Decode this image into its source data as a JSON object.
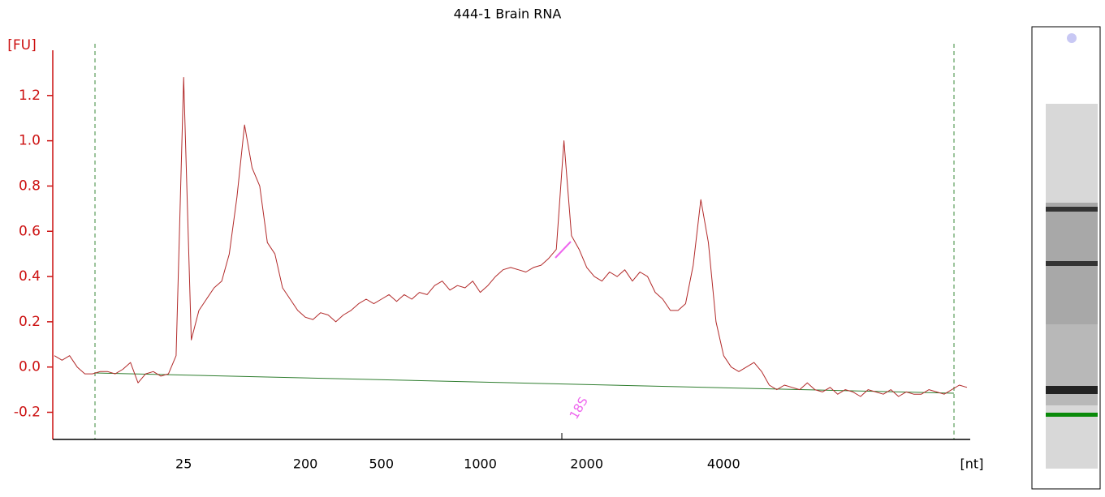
{
  "chart_data": {
    "type": "line",
    "title": "444-1 Brain RNA",
    "y_label": "[FU]",
    "x_label": "[nt]",
    "annotation": "18S",
    "color": "#b22a2a",
    "categories": [
      null,
      null,
      null,
      null,
      null,
      null,
      null,
      null,
      null,
      null,
      null,
      null,
      null,
      null,
      null,
      null,
      null,
      "25",
      null,
      null,
      null,
      null,
      null,
      null,
      null,
      null,
      null,
      null,
      null,
      null,
      null,
      null,
      null,
      "200",
      null,
      null,
      null,
      null,
      null,
      null,
      null,
      null,
      null,
      "500",
      null,
      null,
      null,
      null,
      null,
      null,
      null,
      null,
      null,
      null,
      null,
      null,
      "1000",
      null,
      null,
      null,
      null,
      null,
      null,
      null,
      null,
      null,
      null,
      null,
      null,
      null,
      "2000",
      null,
      null,
      null,
      null,
      null,
      null,
      null,
      null,
      null,
      null,
      null,
      null,
      null,
      null,
      null,
      null,
      null,
      "4000",
      null,
      null,
      null,
      null,
      null,
      null,
      null,
      null,
      null,
      null,
      null,
      null,
      null,
      null,
      null,
      null,
      null,
      null,
      null,
      null,
      null,
      null,
      null,
      null,
      null,
      null,
      null,
      null,
      null,
      null,
      null,
      null
    ],
    "values": [
      0.05,
      0.03,
      0.05,
      0.0,
      -0.03,
      -0.03,
      -0.02,
      -0.02,
      -0.03,
      -0.01,
      0.02,
      -0.07,
      -0.03,
      -0.02,
      -0.04,
      -0.03,
      0.05,
      1.28,
      0.12,
      0.25,
      0.3,
      0.35,
      0.38,
      0.5,
      0.75,
      1.07,
      0.88,
      0.8,
      0.55,
      0.5,
      0.35,
      0.3,
      0.25,
      0.22,
      0.21,
      0.24,
      0.23,
      0.2,
      0.23,
      0.25,
      0.28,
      0.3,
      0.28,
      0.3,
      0.32,
      0.29,
      0.32,
      0.3,
      0.33,
      0.32,
      0.36,
      0.38,
      0.34,
      0.36,
      0.35,
      0.38,
      0.33,
      0.36,
      0.4,
      0.43,
      0.44,
      0.43,
      0.42,
      0.44,
      0.45,
      0.48,
      0.52,
      1.0,
      0.58,
      0.52,
      0.44,
      0.4,
      0.38,
      0.42,
      0.4,
      0.43,
      0.38,
      0.42,
      0.4,
      0.33,
      0.3,
      0.25,
      0.25,
      0.28,
      0.45,
      0.74,
      0.55,
      0.2,
      0.05,
      0.0,
      -0.02,
      0.0,
      0.02,
      -0.02,
      -0.08,
      -0.1,
      -0.08,
      -0.09,
      -0.1,
      -0.07,
      -0.1,
      -0.11,
      -0.09,
      -0.12,
      -0.1,
      -0.11,
      -0.13,
      -0.1,
      -0.11,
      -0.12,
      -0.1,
      -0.13,
      -0.11,
      -0.12,
      -0.12,
      -0.1,
      -0.11,
      -0.12,
      -0.1,
      -0.08,
      -0.09
    ],
    "ylim": [
      -0.32,
      1.4
    ],
    "yticks": [
      -0.2,
      {
        "value": 0,
        "label": "0.0"
      },
      0.2,
      0.4,
      0.6,
      0.8,
      {
        "value": 1,
        "label": "1.0"
      },
      1.2
    ]
  }
}
